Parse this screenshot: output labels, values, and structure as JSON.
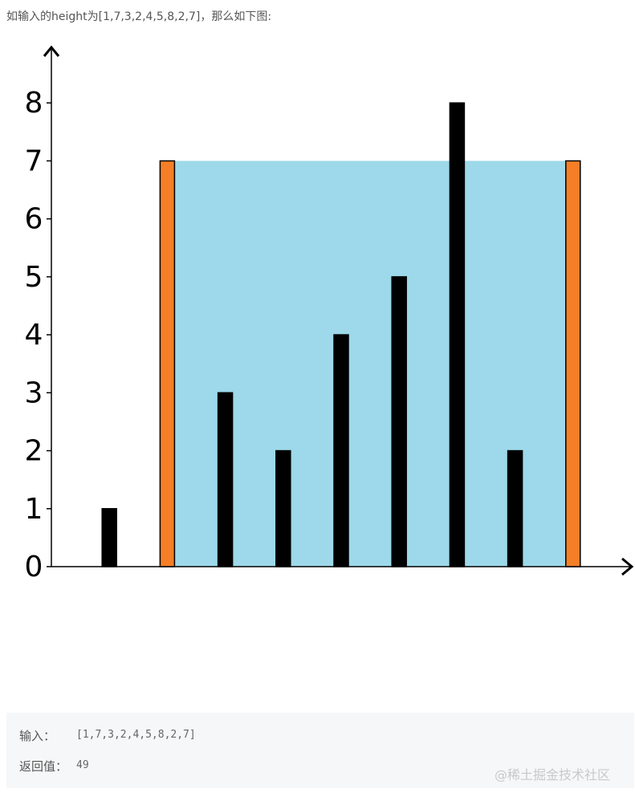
{
  "intro": "如输入的height为[1,7,3,2,4,5,8,2,7]，那么如下图:",
  "chart_data": {
    "type": "bar",
    "categories": [
      null,
      null,
      null,
      null,
      null,
      null,
      null,
      null,
      null
    ],
    "values": [
      1,
      7,
      3,
      2,
      4,
      5,
      8,
      2,
      7
    ],
    "colors": [
      "#000000",
      "#f57e26",
      "#000000",
      "#000000",
      "#000000",
      "#000000",
      "#000000",
      "#000000",
      "#f57e26"
    ],
    "fill_color": "#9dd9ea",
    "ylim": [
      0,
      9
    ],
    "yticks": [
      0,
      1,
      2,
      3,
      4,
      5,
      6,
      7,
      8
    ]
  },
  "example": {
    "input_label": "输入：",
    "input": "[1,7,3,2,4,5,8,2,7]",
    "output_label": "返回值：",
    "output": "49"
  },
  "watermark": "@稀土掘金技术社区"
}
